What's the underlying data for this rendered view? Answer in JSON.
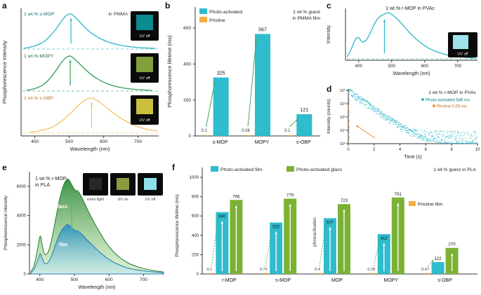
{
  "figure": {
    "panels": {
      "a": {
        "letter": "a"
      },
      "b": {
        "letter": "b"
      },
      "c": {
        "letter": "c"
      },
      "d": {
        "letter": "d"
      },
      "e": {
        "letter": "e"
      },
      "f": {
        "letter": "f"
      }
    }
  },
  "chart_data": [
    {
      "id": "a",
      "type": "line",
      "xlabel": "Wavelength (nm)",
      "ylabel": "Phosphorescence Intensity",
      "xlim": [
        360,
        760
      ],
      "xticks": [
        400,
        500,
        600,
        700
      ],
      "spectra": [
        {
          "label": "1 wt.% s-MOP",
          "note": "in PMMA",
          "color": "#2ab5c9",
          "label_color": "#0e6b75",
          "inset": {
            "label": "UV off",
            "color": "#0d8a8f"
          },
          "x": [
            368,
            385,
            400,
            415,
            430,
            445,
            460,
            472,
            484,
            495,
            505,
            515,
            528,
            545,
            565,
            590,
            620,
            660,
            705,
            750
          ],
          "y": [
            0.02,
            0.05,
            0.09,
            0.15,
            0.24,
            0.38,
            0.55,
            0.72,
            0.88,
            0.98,
            1.0,
            0.93,
            0.8,
            0.62,
            0.45,
            0.3,
            0.18,
            0.09,
            0.04,
            0.02
          ]
        },
        {
          "label": "1 wt.% MOPY",
          "note": "",
          "color": "#2f9e55",
          "label_color": "#1c6b38",
          "inset": {
            "label": "UV off",
            "color": "#7fa03b"
          },
          "x": [
            375,
            392,
            408,
            424,
            440,
            455,
            468,
            480,
            492,
            503,
            514,
            526,
            540,
            558,
            580,
            608,
            645,
            690,
            740
          ],
          "y": [
            0.02,
            0.05,
            0.1,
            0.18,
            0.32,
            0.5,
            0.68,
            0.85,
            0.97,
            1.0,
            0.93,
            0.82,
            0.68,
            0.52,
            0.36,
            0.22,
            0.11,
            0.05,
            0.02
          ]
        },
        {
          "label": "1 wt.% s-OBP",
          "note": "",
          "color": "#eec25f",
          "label_color": "#b5791f",
          "inset": {
            "label": "UV off",
            "color": "#c8bf3c"
          },
          "x": [
            385,
            405,
            425,
            445,
            465,
            485,
            505,
            522,
            538,
            552,
            565,
            578,
            592,
            610,
            632,
            658,
            690,
            725,
            755
          ],
          "y": [
            0.02,
            0.05,
            0.09,
            0.15,
            0.25,
            0.4,
            0.58,
            0.75,
            0.89,
            0.97,
            1.0,
            0.95,
            0.86,
            0.72,
            0.55,
            0.38,
            0.22,
            0.11,
            0.06
          ]
        }
      ]
    },
    {
      "id": "b",
      "type": "bar",
      "ylabel": "Phosphorescence lifetime (ms)",
      "ylim": [
        0,
        600
      ],
      "yticks": [
        0,
        200,
        400,
        600
      ],
      "categories": [
        "s-MOP",
        "MOPY",
        "s-OBP"
      ],
      "series": [
        {
          "name": "Photo-activated",
          "color": "#2fbccc",
          "values": [
            325,
            567,
            121
          ]
        },
        {
          "name": "Pristine",
          "color": "#f3ae3d",
          "values": [
            0.1,
            0.08,
            0.1
          ]
        }
      ],
      "note": [
        "1 wt.% guest",
        "in PMMA film"
      ],
      "arrow_color": "#4aa565"
    },
    {
      "id": "c",
      "type": "line",
      "title": "1 wt.% r-MOP in PVAc",
      "xlabel": "Wavelength (nm)",
      "ylabel": "Intensity",
      "xlim": [
        360,
        760
      ],
      "xticks": [
        400,
        500,
        600,
        700
      ],
      "color": "#2ab5c9",
      "inset": {
        "label": "UV off",
        "color": "#9fe2ea"
      },
      "x": [
        365,
        378,
        390,
        400,
        410,
        422,
        435,
        448,
        462,
        476,
        490,
        504,
        520,
        538,
        558,
        582,
        610,
        645,
        685,
        725,
        755
      ],
      "y": [
        0.04,
        0.22,
        0.42,
        0.46,
        0.37,
        0.4,
        0.56,
        0.76,
        0.9,
        0.96,
        1.0,
        0.94,
        0.84,
        0.7,
        0.54,
        0.38,
        0.24,
        0.13,
        0.06,
        0.03,
        0.01
      ]
    },
    {
      "id": "d",
      "type": "scatter",
      "title": "1 wt.% r-MOP in PVAc",
      "xlabel": "Time (s)",
      "ylabel": "Intensity (counts)",
      "xlim": [
        0,
        10
      ],
      "xticks": [
        0,
        2,
        4,
        6,
        8,
        10
      ],
      "ylog_ticks": [
        "10⁰",
        "10¹",
        "10²",
        "10³",
        "10⁴"
      ],
      "series": [
        {
          "name": "Photo-activated 646 ms",
          "color": "#2fbccc",
          "peak_counts": 10000,
          "lifetime_ms": 646
        },
        {
          "name": "Pristine 0.09 ms",
          "color": "#ef8f35",
          "peak_counts": 10000,
          "lifetime_ms": 0.09
        }
      ]
    },
    {
      "id": "e",
      "type": "area",
      "title": [
        "1 wt.% r-MOP",
        "in PLA"
      ],
      "xlabel": "Wavelength (nm)",
      "ylabel": "Phosphorescence intensity",
      "xlim": [
        370,
        760
      ],
      "xticks": [
        400,
        500,
        600,
        700
      ],
      "ylim": [
        0,
        7000
      ],
      "yticks": [
        0,
        2000,
        4000,
        6000
      ],
      "arrow_color": "#57b879",
      "series": [
        {
          "name": "glass",
          "stroke": "#1f7a2f",
          "fill_top": "#2e8b3a",
          "fill_bottom": "#c8e6b0",
          "x": [
            374,
            384,
            394,
            401,
            407,
            414,
            424,
            434,
            446,
            458,
            470,
            481,
            491,
            501,
            511,
            523,
            537,
            553,
            572,
            596,
            625,
            658,
            695,
            735,
            757
          ],
          "y": [
            150,
            650,
            1800,
            2600,
            1950,
            1350,
            1500,
            2350,
            3800,
            5200,
            6150,
            6500,
            6150,
            5750,
            5650,
            5150,
            4450,
            3700,
            2900,
            2000,
            1250,
            720,
            400,
            210,
            140
          ]
        },
        {
          "name": "film",
          "stroke": "#1d7fae",
          "fill_top": "#2d93bc",
          "fill_bottom": "#bfe6ef",
          "x": [
            374,
            384,
            394,
            401,
            407,
            414,
            424,
            434,
            446,
            458,
            470,
            481,
            491,
            501,
            511,
            523,
            537,
            553,
            572,
            596,
            625,
            658,
            695,
            735,
            757
          ],
          "y": [
            90,
            350,
            950,
            1400,
            1050,
            720,
            800,
            1250,
            2050,
            2750,
            3200,
            3380,
            3180,
            2980,
            2920,
            2680,
            2320,
            1950,
            1520,
            1060,
            670,
            390,
            230,
            130,
            90
          ]
        }
      ],
      "insets": [
        {
          "label": "room light",
          "color": "#23282a"
        },
        {
          "label": "UV on",
          "color": "#8a9a3e"
        },
        {
          "label": "UV off",
          "color": "#8fe0ea"
        }
      ]
    },
    {
      "id": "f",
      "type": "bar",
      "ylabel": "Phosphorescence lifetime (ms)",
      "ylim": [
        0,
        1000
      ],
      "yticks": [
        0,
        200,
        400,
        600,
        800,
        1000
      ],
      "categories": [
        "r-MOP",
        "s-MOP",
        "MOP",
        "MOPY",
        "s-OBP"
      ],
      "series": [
        {
          "name": "Photo-activated film",
          "color": "#2fbccc",
          "values": [
            640,
            532,
            577,
            412,
            122
          ]
        },
        {
          "name": "Photo-activated glass",
          "color": "#7cb234",
          "values": [
            766,
            779,
            723,
            791,
            270
          ]
        },
        {
          "name": "Pristine film",
          "color": "#f3ae3d",
          "values": [
            0.1,
            0.73,
            0.4,
            0.28,
            0.47
          ]
        }
      ],
      "annotation": "photoactivation",
      "note": "1 wt.% guest in PLA",
      "arrow_color": "#4aa565"
    }
  ]
}
